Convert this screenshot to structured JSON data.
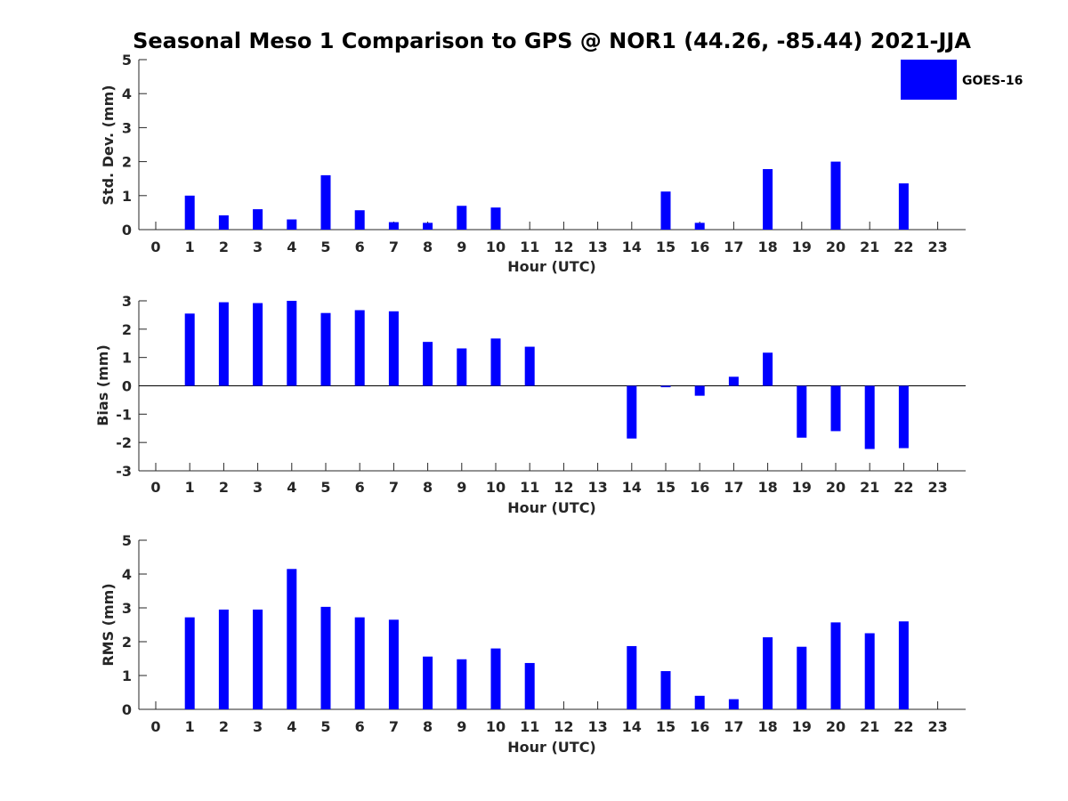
{
  "figure": {
    "title": "Seasonal Meso 1 Comparison to GPS @ NOR1 (44.26, -85.44) 2021-JJA"
  },
  "legend": {
    "label": "GOES-16",
    "color": "#0000ff"
  },
  "chart_data": [
    {
      "type": "bar",
      "title": "",
      "xlabel": "Hour (UTC)",
      "ylabel": "Std. Dev. (mm)",
      "categories": [
        "0",
        "1",
        "2",
        "3",
        "4",
        "5",
        "6",
        "7",
        "8",
        "9",
        "10",
        "11",
        "12",
        "13",
        "14",
        "15",
        "16",
        "17",
        "18",
        "19",
        "20",
        "21",
        "22",
        "23"
      ],
      "yticks": [
        "0",
        "1",
        "2",
        "3",
        "4",
        "5"
      ],
      "ylim": [
        0,
        5
      ],
      "zero_line": false,
      "series": [
        {
          "name": "GOES-16",
          "color": "#0000ff",
          "values": [
            null,
            1.0,
            0.42,
            0.6,
            0.3,
            1.6,
            0.57,
            0.22,
            0.2,
            0.7,
            0.65,
            null,
            null,
            null,
            null,
            1.12,
            0.2,
            null,
            1.78,
            null,
            2.0,
            null,
            1.36,
            null
          ]
        }
      ]
    },
    {
      "type": "bar",
      "title": "",
      "xlabel": "Hour (UTC)",
      "ylabel": "Bias (mm)",
      "categories": [
        "0",
        "1",
        "2",
        "3",
        "4",
        "5",
        "6",
        "7",
        "8",
        "9",
        "10",
        "11",
        "12",
        "13",
        "14",
        "15",
        "16",
        "17",
        "18",
        "19",
        "20",
        "21",
        "22",
        "23"
      ],
      "yticks": [
        "-3",
        "-2",
        "-1",
        "0",
        "1",
        "2",
        "3"
      ],
      "ylim": [
        -3,
        3
      ],
      "zero_line": true,
      "series": [
        {
          "name": "GOES-16",
          "color": "#0000ff",
          "values": [
            null,
            2.55,
            2.95,
            2.92,
            3.0,
            2.57,
            2.67,
            2.63,
            1.55,
            1.32,
            1.67,
            1.38,
            null,
            null,
            -1.86,
            -0.05,
            -0.35,
            0.32,
            1.17,
            -1.83,
            -1.6,
            -2.23,
            -2.2,
            null
          ]
        }
      ]
    },
    {
      "type": "bar",
      "title": "",
      "xlabel": "Hour (UTC)",
      "ylabel": "RMS (mm)",
      "categories": [
        "0",
        "1",
        "2",
        "3",
        "4",
        "5",
        "6",
        "7",
        "8",
        "9",
        "10",
        "11",
        "12",
        "13",
        "14",
        "15",
        "16",
        "17",
        "18",
        "19",
        "20",
        "21",
        "22",
        "23"
      ],
      "yticks": [
        "0",
        "1",
        "2",
        "3",
        "4",
        "5"
      ],
      "ylim": [
        0,
        5
      ],
      "zero_line": false,
      "series": [
        {
          "name": "GOES-16",
          "color": "#0000ff",
          "values": [
            null,
            2.72,
            2.95,
            2.95,
            4.15,
            3.03,
            2.72,
            2.65,
            1.56,
            1.48,
            1.8,
            1.37,
            null,
            null,
            1.87,
            1.13,
            0.4,
            0.3,
            2.13,
            1.85,
            2.57,
            2.25,
            2.6,
            null
          ]
        }
      ]
    }
  ]
}
